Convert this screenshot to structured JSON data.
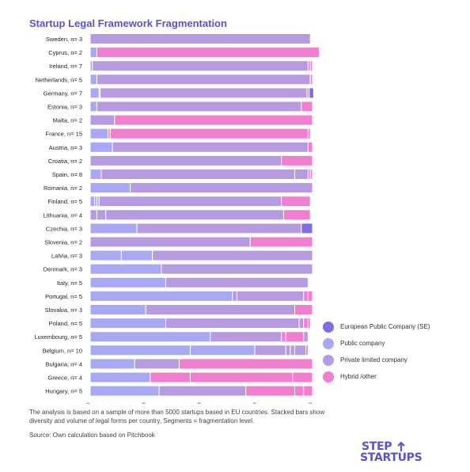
{
  "title": "Startup Legal Framework Fragmentation",
  "chart_data": {
    "type": "bar",
    "orientation": "horizontal",
    "stacked": true,
    "categories": [
      "Sweden, n= 3",
      "Cyprus, n= 2",
      "Ireland, n= 7",
      "Netherlands, n= 5",
      "Germany, n= 7",
      "Estonia, n= 3",
      "Malta, n= 2",
      "France, n= 15",
      "Austria, n= 3",
      "Croatia, n= 2",
      "Spain, n= 8",
      "Romania, n= 2",
      "Finland, n= 5",
      "Lithuania, n= 4",
      "Czechia, n= 3",
      "Slovenia, n= 2",
      "Latvia, n= 3",
      "Denmark, n= 3",
      "Italy, n= 5",
      "Portugal, n= 5",
      "Slovakia, n= 3",
      "Poland, n= 5",
      "Luxembourg, n= 5",
      "Belgium, n= 10",
      "Bulgaria, n= 4",
      "Greece, n= 4",
      "Hungary, n= 5"
    ],
    "xlim": [
      0,
      100
    ],
    "x_ticks": [
      "0%",
      "25%",
      "50%",
      "75%",
      "100%"
    ],
    "legend_position": "right",
    "series": [
      {
        "name": "European Public Company (SE)",
        "color": "#7b6fe6"
      },
      {
        "name": "Public company",
        "color": "#a9a8f2"
      },
      {
        "name": "Private limited company",
        "color": "#b79be0"
      },
      {
        "name": "Hybrid /other",
        "color": "#f07fd0"
      }
    ],
    "rows": [
      [
        [
          2,
          99
        ]
      ],
      [
        [
          1,
          3
        ],
        [
          3,
          100
        ]
      ],
      [
        [
          1,
          1
        ],
        [
          2,
          97
        ],
        [
          3,
          1
        ],
        [
          3,
          1
        ]
      ],
      [
        [
          1,
          3
        ],
        [
          2,
          96
        ],
        [
          3,
          1
        ]
      ],
      [
        [
          1,
          4
        ],
        [
          2,
          0.5
        ],
        [
          2,
          93
        ],
        [
          3,
          1
        ],
        [
          0,
          2
        ]
      ],
      [
        [
          1,
          3
        ],
        [
          2,
          92
        ],
        [
          3,
          5
        ]
      ],
      [
        [
          2,
          11
        ],
        [
          3,
          89
        ]
      ],
      [
        [
          1,
          8
        ],
        [
          2,
          1
        ],
        [
          3,
          89
        ],
        [
          3,
          1
        ]
      ],
      [
        [
          1,
          10
        ],
        [
          2,
          88
        ],
        [
          3,
          2
        ]
      ],
      [
        [
          2,
          86
        ],
        [
          3,
          14
        ]
      ],
      [
        [
          1,
          5
        ],
        [
          2,
          87
        ],
        [
          2,
          6
        ],
        [
          3,
          1
        ],
        [
          3,
          1
        ]
      ],
      [
        [
          1,
          18
        ],
        [
          2,
          82
        ]
      ],
      [
        [
          1,
          2
        ],
        [
          1,
          1
        ],
        [
          1,
          1
        ],
        [
          2,
          82
        ],
        [
          3,
          13
        ]
      ],
      [
        [
          2,
          3
        ],
        [
          2,
          4
        ],
        [
          2,
          80
        ],
        [
          3,
          12
        ]
      ],
      [
        [
          1,
          21
        ],
        [
          2,
          74
        ],
        [
          0,
          5
        ]
      ],
      [
        [
          2,
          72
        ],
        [
          3,
          28
        ]
      ],
      [
        [
          1,
          14
        ],
        [
          1,
          14
        ],
        [
          2,
          72
        ]
      ],
      [
        [
          1,
          32
        ],
        [
          2,
          68
        ]
      ],
      [
        [
          1,
          34
        ],
        [
          2,
          64
        ]
      ],
      [
        [
          1,
          64
        ],
        [
          2,
          2
        ],
        [
          2,
          30
        ],
        [
          3,
          2
        ],
        [
          3,
          2
        ]
      ],
      [
        [
          1,
          25
        ],
        [
          2,
          67
        ],
        [
          3,
          8
        ]
      ],
      [
        [
          1,
          34
        ],
        [
          2,
          60
        ],
        [
          2,
          2
        ],
        [
          3,
          2
        ],
        [
          3,
          1
        ]
      ],
      [
        [
          1,
          54
        ],
        [
          2,
          32
        ],
        [
          3,
          2
        ],
        [
          3,
          8
        ],
        [
          2,
          2
        ]
      ],
      [
        [
          1,
          45
        ],
        [
          1,
          29
        ],
        [
          2,
          14
        ],
        [
          2,
          2
        ],
        [
          2,
          2
        ],
        [
          2,
          5
        ],
        [
          3,
          1
        ]
      ],
      [
        [
          1,
          20
        ],
        [
          2,
          20
        ],
        [
          3,
          60
        ]
      ],
      [
        [
          1,
          27
        ],
        [
          3,
          18
        ],
        [
          3,
          46
        ],
        [
          3,
          9
        ]
      ],
      [
        [
          1,
          31
        ],
        [
          2,
          39
        ],
        [
          3,
          22
        ],
        [
          3,
          4
        ],
        [
          3,
          4
        ]
      ]
    ]
  },
  "note": "The analysis is based on a sample of more than 5000 startups based in EU countries. Stacked bars show diversity and volume of legal forms per country, Segments = fragmentation level.",
  "source": "Source: Own calculation  based on Pitchbook",
  "logo": {
    "line1": "STEP",
    "line2": "STARTUPS"
  }
}
